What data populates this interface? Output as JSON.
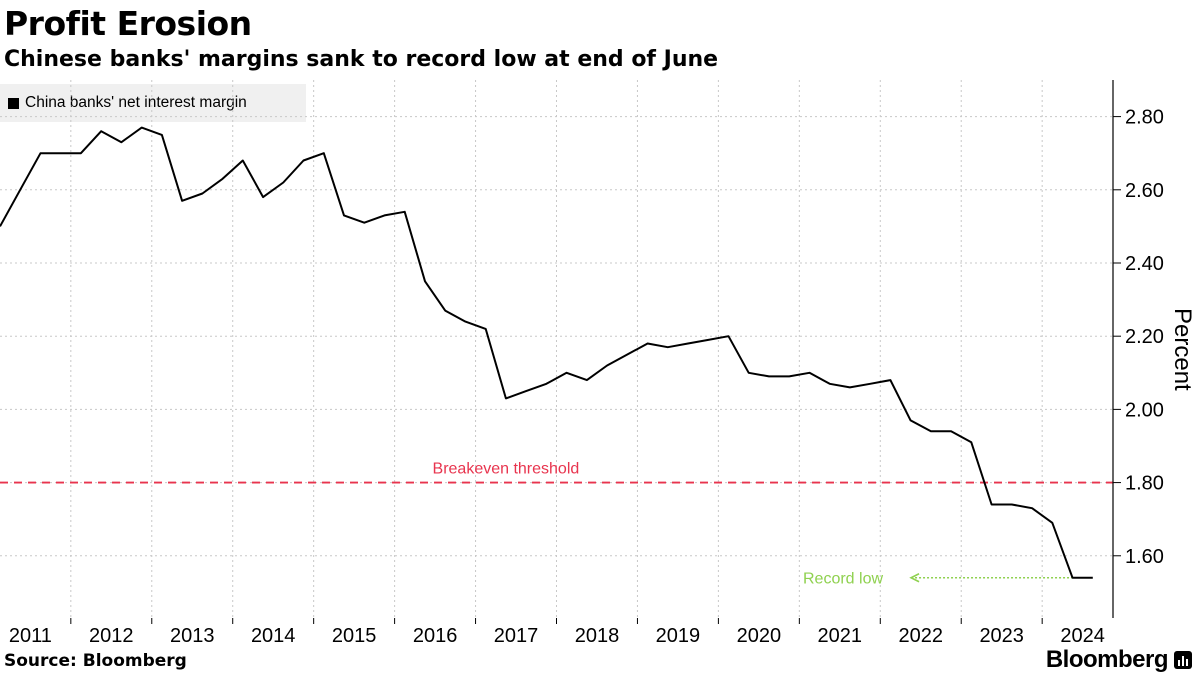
{
  "header": {
    "title": "Profit Erosion",
    "subtitle": "Chinese banks' margins sank to record low at end of June"
  },
  "footer": {
    "source": "Source: Bloomberg",
    "brand": "Bloomberg"
  },
  "colors": {
    "line": "#000000",
    "threshold": "#e8344e",
    "record_low": "#8fd14f",
    "grid": "#c8c8c8",
    "legend_bg": "#f0f0f0"
  },
  "chart_data": {
    "type": "line",
    "title": "Profit Erosion",
    "subtitle": "Chinese banks' margins sank to record low at end of June",
    "ylabel": "Percent",
    "xlabel": "",
    "ylim": [
      1.43,
      2.9
    ],
    "xlim": [
      2010.625,
      2024.375
    ],
    "yticks": [
      "1.60",
      "1.80",
      "2.00",
      "2.20",
      "2.40",
      "2.60",
      "2.80"
    ],
    "ytick_values": [
      1.6,
      1.8,
      2.0,
      2.2,
      2.4,
      2.6,
      2.8
    ],
    "xticks": [
      "2011",
      "2012",
      "2013",
      "2014",
      "2015",
      "2016",
      "2017",
      "2018",
      "2019",
      "2020",
      "2021",
      "2022",
      "2023",
      "2024"
    ],
    "y_axis_side": "right",
    "grid": true,
    "legend_placement": "top-left",
    "series": [
      {
        "name": "China banks' net interest margin",
        "points": [
          [
            "2010-Q3",
            2.5
          ],
          [
            "2010-Q4",
            2.6
          ],
          [
            "2011-Q1",
            2.7
          ],
          [
            "2011-Q2",
            2.7
          ],
          [
            "2011-Q3",
            2.7
          ],
          [
            "2011-Q4",
            2.76
          ],
          [
            "2012-Q1",
            2.73
          ],
          [
            "2012-Q2",
            2.77
          ],
          [
            "2012-Q3",
            2.75
          ],
          [
            "2012-Q4",
            2.57
          ],
          [
            "2013-Q1",
            2.59
          ],
          [
            "2013-Q2",
            2.63
          ],
          [
            "2013-Q3",
            2.68
          ],
          [
            "2013-Q4",
            2.58
          ],
          [
            "2014-Q1",
            2.62
          ],
          [
            "2014-Q2",
            2.68
          ],
          [
            "2014-Q3",
            2.7
          ],
          [
            "2014-Q4",
            2.53
          ],
          [
            "2015-Q1",
            2.51
          ],
          [
            "2015-Q2",
            2.53
          ],
          [
            "2015-Q3",
            2.54
          ],
          [
            "2015-Q4",
            2.35
          ],
          [
            "2016-Q1",
            2.27
          ],
          [
            "2016-Q2",
            2.24
          ],
          [
            "2016-Q3",
            2.22
          ],
          [
            "2016-Q4",
            2.03
          ],
          [
            "2017-Q1",
            2.05
          ],
          [
            "2017-Q2",
            2.07
          ],
          [
            "2017-Q3",
            2.1
          ],
          [
            "2017-Q4",
            2.08
          ],
          [
            "2018-Q1",
            2.12
          ],
          [
            "2018-Q2",
            2.15
          ],
          [
            "2018-Q3",
            2.18
          ],
          [
            "2018-Q4",
            2.17
          ],
          [
            "2019-Q1",
            2.18
          ],
          [
            "2019-Q2",
            2.19
          ],
          [
            "2019-Q3",
            2.2
          ],
          [
            "2019-Q4",
            2.1
          ],
          [
            "2020-Q1",
            2.09
          ],
          [
            "2020-Q2",
            2.09
          ],
          [
            "2020-Q3",
            2.1
          ],
          [
            "2020-Q4",
            2.07
          ],
          [
            "2021-Q1",
            2.06
          ],
          [
            "2021-Q2",
            2.07
          ],
          [
            "2021-Q3",
            2.08
          ],
          [
            "2021-Q4",
            1.97
          ],
          [
            "2022-Q1",
            1.94
          ],
          [
            "2022-Q2",
            1.94
          ],
          [
            "2022-Q3",
            1.91
          ],
          [
            "2022-Q4",
            1.74
          ],
          [
            "2023-Q1",
            1.74
          ],
          [
            "2023-Q2",
            1.73
          ],
          [
            "2023-Q3",
            1.69
          ],
          [
            "2023-Q4",
            1.54
          ],
          [
            "2024-Q1",
            1.54
          ]
        ]
      }
    ],
    "x_positions": [
      2010.625,
      2010.875,
      2011.125,
      2011.375,
      2011.625,
      2011.875,
      2012.125,
      2012.375,
      2012.625,
      2012.875,
      2013.125,
      2013.375,
      2013.625,
      2013.875,
      2014.125,
      2014.375,
      2014.625,
      2014.875,
      2015.125,
      2015.375,
      2015.625,
      2015.875,
      2016.125,
      2016.375,
      2016.625,
      2016.875,
      2017.125,
      2017.375,
      2017.625,
      2017.875,
      2018.125,
      2018.375,
      2018.625,
      2018.875,
      2019.125,
      2019.375,
      2019.625,
      2019.875,
      2020.125,
      2020.375,
      2020.625,
      2020.875,
      2021.125,
      2021.375,
      2021.625,
      2021.875,
      2022.125,
      2022.375,
      2022.625,
      2022.875,
      2023.125,
      2023.375,
      2023.625,
      2023.875,
      2024.125
    ],
    "annotations": [
      {
        "text": "Breakeven threshold",
        "type": "hline",
        "y": 1.8,
        "color": "#e8344e",
        "style": "dashed"
      },
      {
        "text": "Record low",
        "type": "arrow",
        "y": 1.54,
        "color": "#8fd14f",
        "style": "dotted"
      }
    ]
  }
}
